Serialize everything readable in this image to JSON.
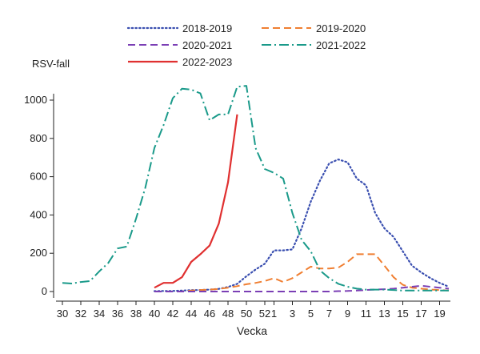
{
  "chart_data": {
    "type": "line",
    "ylabel": "RSV-fall",
    "xlabel": "Vecka",
    "ylim": [
      0,
      1100
    ],
    "yticks": [
      0,
      200,
      400,
      600,
      800,
      1000
    ],
    "xtick_labels": [
      "30",
      "32",
      "34",
      "36",
      "38",
      "40",
      "42",
      "44",
      "46",
      "48",
      "50",
      "52",
      "1",
      "3",
      "5",
      "7",
      "9",
      "11",
      "13",
      "15",
      "17",
      "19"
    ],
    "legend_placement": "top",
    "grid": false,
    "series": [
      {
        "name": "2018-2019",
        "color": "#3a4fb0",
        "dash": "dotted",
        "weeks": [
          40,
          41,
          42,
          43,
          44,
          45,
          46,
          47,
          48,
          49,
          50,
          51,
          52,
          1,
          2,
          3,
          4,
          5,
          6,
          7,
          8,
          9,
          10,
          11,
          12,
          13,
          14,
          15,
          16,
          17,
          18,
          19,
          20
        ],
        "values": [
          2,
          3,
          3,
          5,
          7,
          8,
          10,
          14,
          24,
          40,
          80,
          115,
          145,
          215,
          215,
          220,
          330,
          470,
          580,
          670,
          690,
          675,
          590,
          555,
          410,
          330,
          285,
          210,
          135,
          100,
          70,
          45,
          25
        ]
      },
      {
        "name": "2019-2020",
        "color": "#f07f32",
        "dash": "dashed",
        "weeks": [
          40,
          41,
          42,
          43,
          44,
          45,
          46,
          47,
          48,
          49,
          50,
          51,
          52,
          1,
          2,
          3,
          4,
          5,
          6,
          7,
          8,
          9,
          10,
          11,
          12,
          13,
          14,
          15,
          16,
          17,
          18,
          19,
          20
        ],
        "values": [
          0,
          0,
          0,
          0,
          5,
          8,
          10,
          14,
          20,
          28,
          38,
          45,
          55,
          70,
          50,
          70,
          100,
          130,
          120,
          120,
          125,
          155,
          195,
          195,
          195,
          135,
          75,
          35,
          20,
          15,
          10,
          8,
          5
        ]
      },
      {
        "name": "2020-2021",
        "color": "#7b3fb5",
        "dash": "dashed",
        "weeks": [
          40,
          41,
          42,
          43,
          44,
          45,
          46,
          47,
          48,
          49,
          50,
          51,
          52,
          1,
          2,
          3,
          4,
          5,
          6,
          7,
          8,
          9,
          10,
          11,
          12,
          13,
          14,
          15,
          16,
          17,
          18,
          19,
          20
        ],
        "values": [
          0,
          0,
          0,
          0,
          0,
          0,
          0,
          0,
          0,
          0,
          0,
          0,
          0,
          0,
          0,
          0,
          0,
          0,
          0,
          0,
          2,
          3,
          5,
          8,
          10,
          12,
          15,
          20,
          25,
          30,
          25,
          20,
          15
        ]
      },
      {
        "name": "2021-2022",
        "color": "#1a9a8a",
        "dash": "dashdot",
        "weeks": [
          30,
          31,
          32,
          33,
          34,
          35,
          36,
          37,
          38,
          39,
          40,
          41,
          42,
          43,
          44,
          45,
          46,
          47,
          48,
          49,
          50,
          51,
          52,
          1,
          2,
          3,
          4,
          5,
          6,
          7,
          8,
          9,
          10,
          11,
          12,
          13,
          14,
          15,
          16,
          17,
          18,
          19,
          20
        ],
        "values": [
          45,
          42,
          50,
          55,
          105,
          150,
          225,
          235,
          380,
          540,
          750,
          870,
          1010,
          1060,
          1055,
          1035,
          895,
          925,
          925,
          1070,
          1075,
          750,
          640,
          620,
          590,
          410,
          270,
          210,
          110,
          70,
          40,
          25,
          15,
          10,
          10,
          10,
          8,
          5,
          5,
          5,
          5,
          5,
          5
        ]
      },
      {
        "name": "2022-2023",
        "color": "#e03030",
        "dash": "solid",
        "weeks": [
          40,
          41,
          42,
          43,
          44,
          45,
          46,
          47,
          48,
          49
        ],
        "values": [
          20,
          45,
          45,
          75,
          155,
          195,
          240,
          355,
          570,
          925
        ]
      }
    ]
  }
}
